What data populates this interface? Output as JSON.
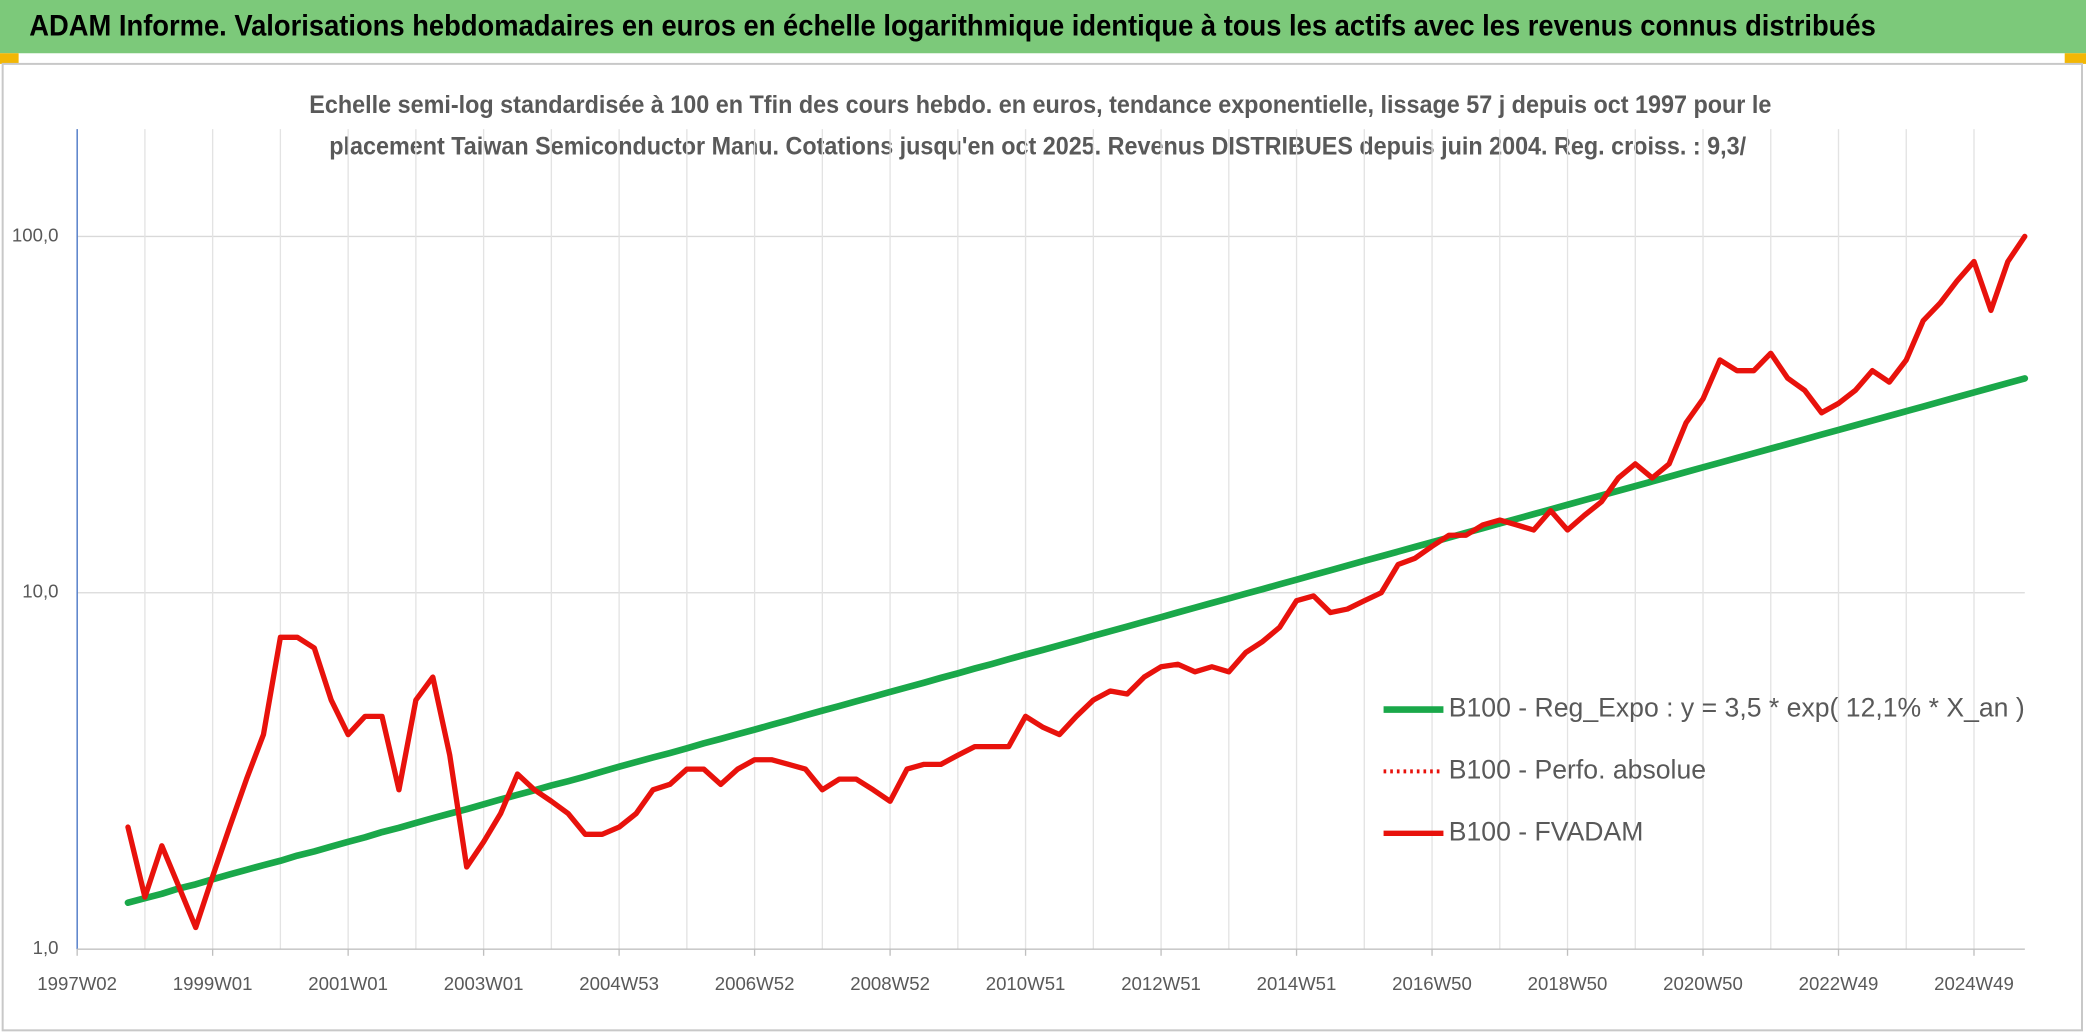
{
  "chart_data": {
    "type": "line",
    "title": "ADAM Informe. Valorisations hebdomadaires en euros en échelle logarithmique identique à tous les actifs avec les revenus connus distribués",
    "subtitle": [
      "Echelle semi-log standardisée à 100 en Tfin des cours hebdo. en euros, tendance exponentielle, lissage 57 j depuis oct 1997 pour le",
      "placement Taiwan Semiconductor Manu. Cotations jusqu'en oct 2025. Revenus DISTRIBUES depuis juin 2004. Reg. croiss. : 9,3/"
    ],
    "categories": [
      "1997W02",
      null,
      null,
      null,
      null,
      null,
      null,
      null,
      "1999W01",
      null,
      null,
      null,
      null,
      null,
      null,
      null,
      "2001W01",
      null,
      null,
      null,
      null,
      null,
      null,
      null,
      "2003W01",
      null,
      null,
      null,
      null,
      null,
      null,
      null,
      "2004W53",
      null,
      null,
      null,
      null,
      null,
      null,
      null,
      "2006W52",
      null,
      null,
      null,
      null,
      null,
      null,
      null,
      "2008W52",
      null,
      null,
      null,
      null,
      null,
      null,
      null,
      "2010W51",
      null,
      null,
      null,
      null,
      null,
      null,
      null,
      "2012W51",
      null,
      null,
      null,
      null,
      null,
      null,
      null,
      "2014W51",
      null,
      null,
      null,
      null,
      null,
      null,
      null,
      "2016W50",
      null,
      null,
      null,
      null,
      null,
      null,
      null,
      "2018W50",
      null,
      null,
      null,
      null,
      null,
      null,
      null,
      "2020W50",
      null,
      null,
      null,
      null,
      null,
      null,
      null,
      "2022W49",
      null,
      null,
      null,
      null,
      null,
      null,
      null,
      "2024W49",
      null,
      null,
      null
    ],
    "series": [
      {
        "name": "B100 - Reg_Expo : y = 3,5 * exp( 12,1% *  X_an )",
        "color": "#1aa84a",
        "style": "solid",
        "width": 5,
        "values": [
          null,
          null,
          null,
          1.35,
          1.39,
          1.43,
          1.48,
          1.52,
          1.57,
          1.62,
          1.67,
          1.72,
          1.77,
          1.83,
          1.88,
          1.94,
          2.0,
          2.06,
          2.13,
          2.19,
          2.26,
          2.33,
          2.4,
          2.47,
          2.55,
          2.63,
          2.71,
          2.79,
          2.88,
          2.96,
          3.05,
          3.15,
          3.25,
          3.35,
          3.45,
          3.55,
          3.66,
          3.78,
          3.89,
          4.01,
          4.13,
          4.26,
          4.39,
          4.53,
          4.67,
          4.81,
          4.96,
          5.11,
          5.27,
          5.43,
          5.59,
          5.77,
          5.94,
          6.13,
          6.31,
          6.51,
          6.71,
          6.91,
          7.12,
          7.34,
          7.57,
          7.8,
          8.04,
          8.29,
          8.54,
          8.81,
          9.08,
          9.36,
          9.64,
          9.94,
          10.24,
          10.56,
          10.88,
          11.22,
          11.56,
          11.92,
          12.29,
          12.66,
          13.05,
          13.45,
          13.86,
          14.29,
          14.73,
          15.18,
          15.65,
          16.13,
          16.62,
          17.13,
          17.66,
          18.2,
          18.76,
          19.33,
          19.92,
          20.53,
          21.16,
          21.82,
          22.49,
          23.18,
          23.89,
          24.62,
          25.38,
          26.15,
          26.96,
          27.79,
          28.64,
          29.52,
          30.43,
          31.36,
          32.32,
          33.31,
          34.34,
          35.4,
          36.49,
          37.61,
          38.76,
          39.95
        ]
      },
      {
        "name": "B100 - Perfo. absolue",
        "color": "#e8120c",
        "style": "dotted",
        "width": 3,
        "values": [
          null,
          null,
          null,
          2.2,
          1.4,
          1.95,
          1.5,
          1.15,
          1.6,
          2.2,
          3.0,
          4.0,
          7.5,
          7.5,
          7.0,
          5.0,
          4.0,
          4.5,
          4.5,
          2.8,
          5.0,
          5.8,
          3.5,
          1.7,
          2.0,
          2.4,
          3.1,
          2.8,
          2.6,
          2.4,
          2.1,
          2.1,
          2.2,
          2.4,
          2.8,
          2.9,
          3.2,
          3.2,
          2.9,
          3.2,
          3.4,
          3.4,
          3.3,
          3.2,
          2.8,
          3.0,
          3.0,
          2.8,
          2.6,
          3.2,
          3.3,
          3.3,
          3.5,
          3.7,
          3.7,
          3.7,
          4.5,
          4.2,
          4.0,
          4.5,
          5.0,
          5.3,
          5.2,
          5.8,
          6.2,
          6.3,
          6.0,
          6.2,
          6.0,
          6.8,
          7.3,
          8.0,
          9.5,
          9.8,
          8.8,
          9.0,
          9.5,
          10.0,
          12.0,
          12.5,
          13.5,
          14.5,
          14.5,
          15.5,
          16.0,
          15.5,
          15.0,
          17.0,
          15.0,
          16.5,
          18.0,
          21.0,
          23.0,
          21.0,
          23.0,
          30.0,
          35.0,
          45.0,
          42.0,
          42.0,
          47.0,
          40.0,
          37.0,
          32.0,
          34.0,
          37.0,
          42.0,
          39.0,
          45.0,
          58.0,
          65.0,
          75.0,
          85.0,
          62.0,
          85.0,
          100.0
        ]
      },
      {
        "name": "B100 - FVADAM",
        "color": "#e8120c",
        "style": "solid",
        "width": 4,
        "values": [
          null,
          null,
          null,
          2.2,
          1.4,
          1.95,
          1.5,
          1.15,
          1.6,
          2.2,
          3.0,
          4.0,
          7.5,
          7.5,
          7.0,
          5.0,
          4.0,
          4.5,
          4.5,
          2.8,
          5.0,
          5.8,
          3.5,
          1.7,
          2.0,
          2.4,
          3.1,
          2.8,
          2.6,
          2.4,
          2.1,
          2.1,
          2.2,
          2.4,
          2.8,
          2.9,
          3.2,
          3.2,
          2.9,
          3.2,
          3.4,
          3.4,
          3.3,
          3.2,
          2.8,
          3.0,
          3.0,
          2.8,
          2.6,
          3.2,
          3.3,
          3.3,
          3.5,
          3.7,
          3.7,
          3.7,
          4.5,
          4.2,
          4.0,
          4.5,
          5.0,
          5.3,
          5.2,
          5.8,
          6.2,
          6.3,
          6.0,
          6.2,
          6.0,
          6.8,
          7.3,
          8.0,
          9.5,
          9.8,
          8.8,
          9.0,
          9.5,
          10.0,
          12.0,
          12.5,
          13.5,
          14.5,
          14.5,
          15.5,
          16.0,
          15.5,
          15.0,
          17.0,
          15.0,
          16.5,
          18.0,
          21.0,
          23.0,
          21.0,
          23.0,
          30.0,
          35.0,
          45.0,
          42.0,
          42.0,
          47.0,
          40.0,
          37.0,
          32.0,
          34.0,
          37.0,
          42.0,
          39.0,
          45.0,
          58.0,
          65.0,
          75.0,
          85.0,
          62.0,
          85.0,
          100.0
        ]
      }
    ],
    "log_y": true,
    "ylim": [
      1,
      200
    ],
    "yticks": [
      {
        "value": 1,
        "label": "1,0"
      },
      {
        "value": 10,
        "label": "10,0"
      },
      {
        "value": 100,
        "label": "100,0"
      }
    ],
    "grid": true,
    "legend": "right"
  }
}
